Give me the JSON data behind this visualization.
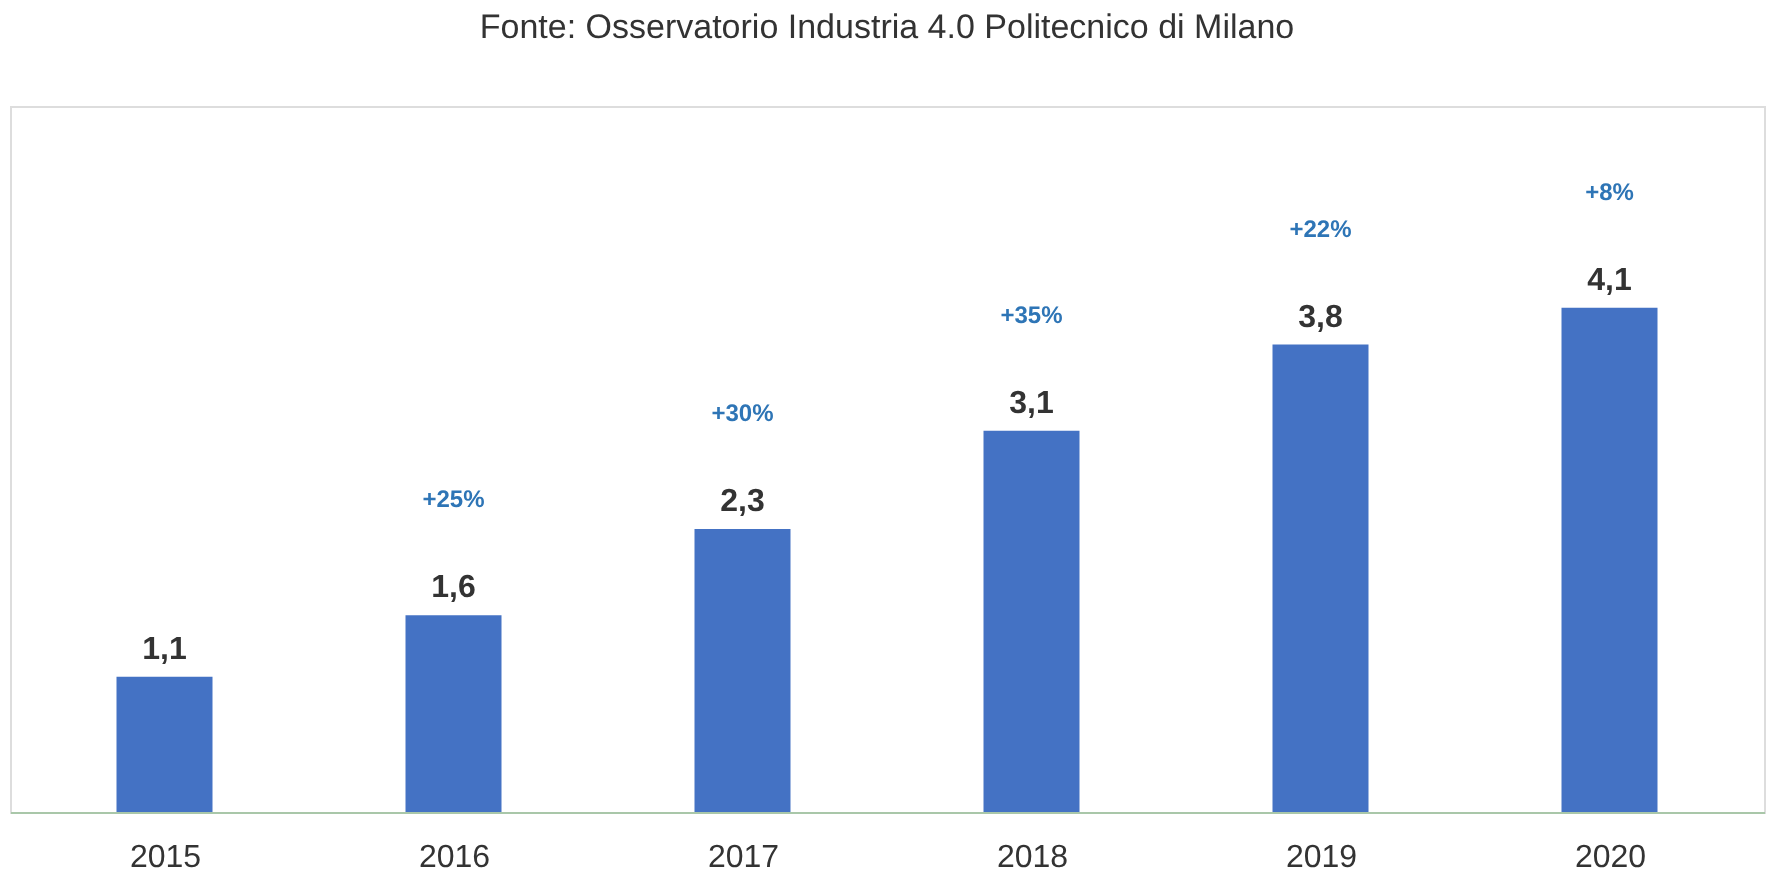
{
  "chart_data": {
    "type": "bar",
    "title": "Fonte: Osservatorio Industria 4.0 Politecnico di Milano",
    "categories": [
      "2015",
      "2016",
      "2017",
      "2018",
      "2019",
      "2020"
    ],
    "values": [
      1.1,
      1.6,
      2.3,
      3.1,
      3.8,
      4.1
    ],
    "color": "#4472c4",
    "value_labels": [
      "1,1",
      "1,6",
      "2,3",
      "3,1",
      "3,8",
      "4,1"
    ],
    "annotations": [
      "+25%",
      "+30%",
      "+35%",
      "+22%",
      "+8%"
    ]
  }
}
